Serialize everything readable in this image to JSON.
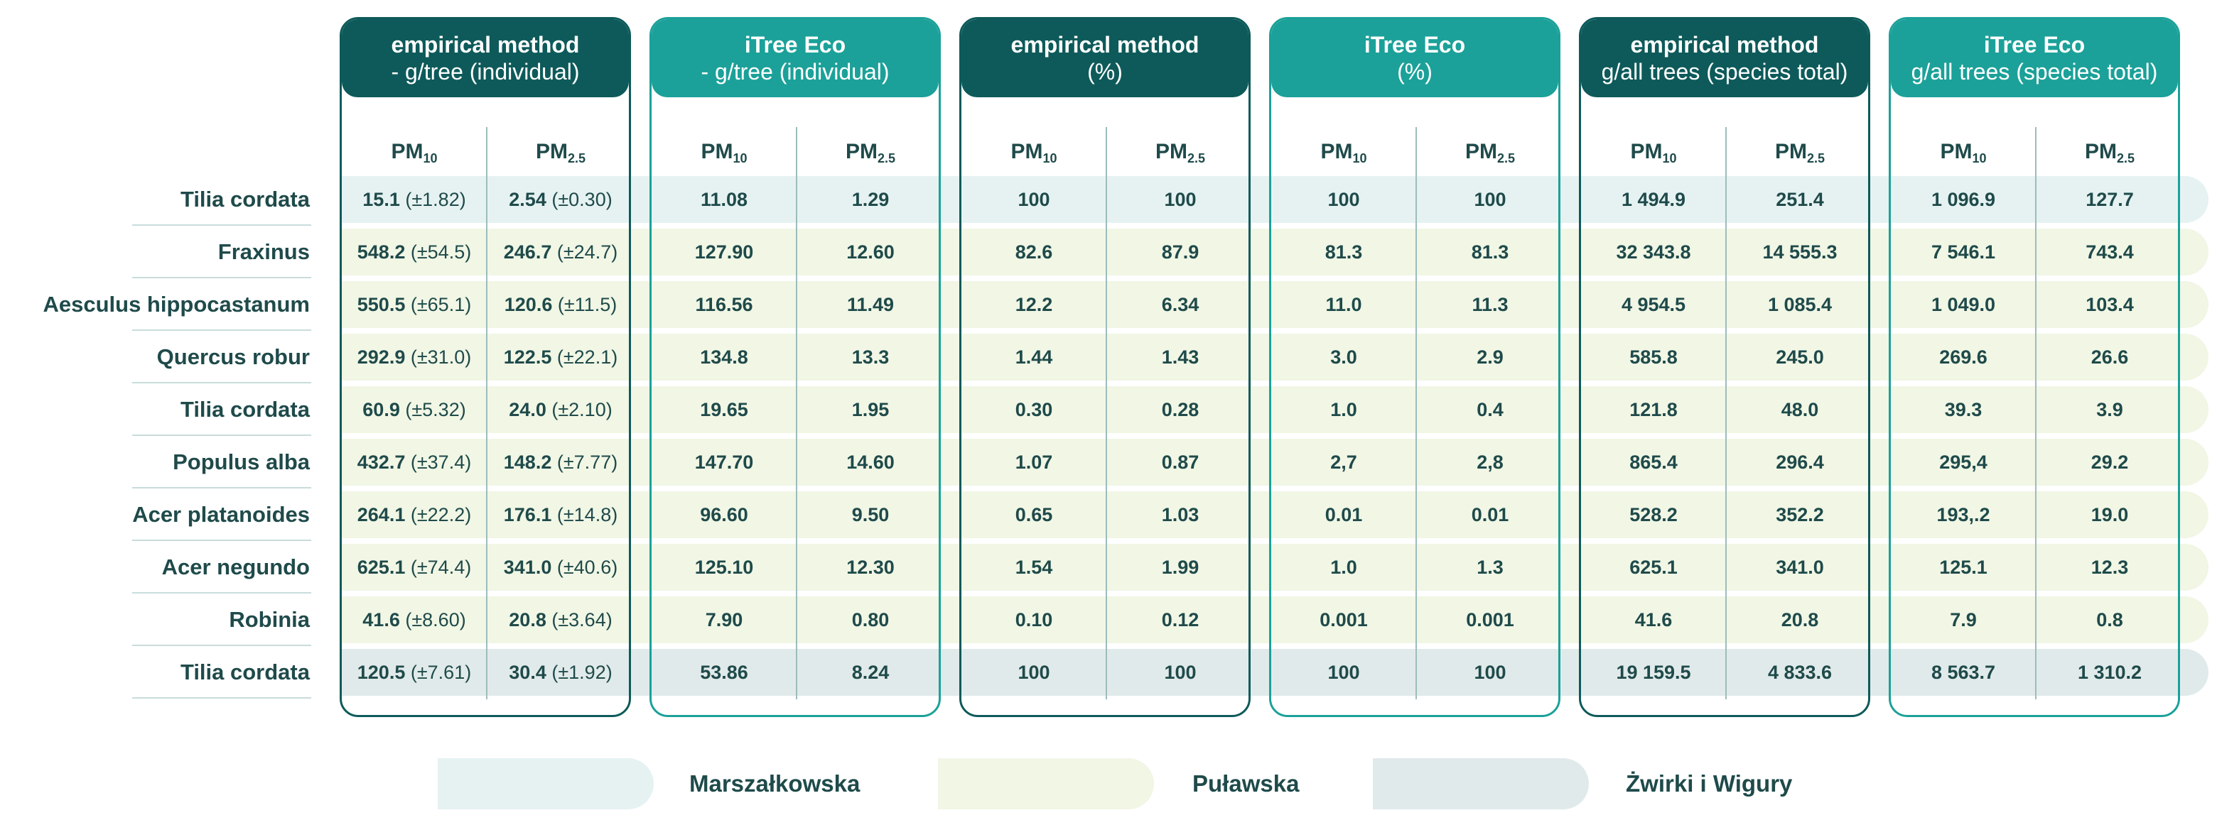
{
  "species": [
    "Tilia cordata",
    "Fraxinus",
    "Aesculus hippocastanum",
    "Quercus robur",
    "Tilia cordata",
    "Populus alba",
    "Acer platanoides",
    "Acer negundo",
    "Robinia",
    "Tilia cordata"
  ],
  "row_groups": [
    "marsz",
    "pul",
    "pul",
    "pul",
    "pul",
    "pul",
    "pul",
    "pul",
    "pul",
    "zw"
  ],
  "pm10_label": "PM",
  "pm10_sub": "10",
  "pm25_label": "PM",
  "pm25_sub": "2.5",
  "panels": [
    {
      "style": "dark",
      "title_line1": "empirical method",
      "title_line2": "- g/tree (individual)",
      "rows": [
        [
          {
            "v": "15.1",
            "sd": "(±1.82)"
          },
          {
            "v": "2.54",
            "sd": "(±0.30)"
          }
        ],
        [
          {
            "v": "548.2",
            "sd": "(±54.5)"
          },
          {
            "v": "246.7",
            "sd": "(±24.7)"
          }
        ],
        [
          {
            "v": "550.5",
            "sd": "(±65.1)"
          },
          {
            "v": "120.6",
            "sd": "(±11.5)"
          }
        ],
        [
          {
            "v": "292.9",
            "sd": "(±31.0)"
          },
          {
            "v": "122.5",
            "sd": "(±22.1)"
          }
        ],
        [
          {
            "v": "60.9",
            "sd": "(±5.32)"
          },
          {
            "v": "24.0",
            "sd": "(±2.10)"
          }
        ],
        [
          {
            "v": "432.7",
            "sd": "(±37.4)"
          },
          {
            "v": "148.2",
            "sd": "(±7.77)"
          }
        ],
        [
          {
            "v": "264.1",
            "sd": "(±22.2)"
          },
          {
            "v": "176.1",
            "sd": "(±14.8)"
          }
        ],
        [
          {
            "v": "625.1",
            "sd": "(±74.4)"
          },
          {
            "v": "341.0",
            "sd": "(±40.6)"
          }
        ],
        [
          {
            "v": "41.6",
            "sd": "(±8.60)"
          },
          {
            "v": "20.8",
            "sd": "(±3.64)"
          }
        ],
        [
          {
            "v": "120.5",
            "sd": "(±7.61)"
          },
          {
            "v": "30.4",
            "sd": "(±1.92)"
          }
        ]
      ]
    },
    {
      "style": "light",
      "title_line1": "iTree Eco",
      "title_line2": "- g/tree (individual)",
      "rows": [
        [
          {
            "v": "11.08"
          },
          {
            "v": "1.29"
          }
        ],
        [
          {
            "v": "127.90"
          },
          {
            "v": "12.60"
          }
        ],
        [
          {
            "v": "116.56"
          },
          {
            "v": "11.49"
          }
        ],
        [
          {
            "v": "134.8"
          },
          {
            "v": "13.3"
          }
        ],
        [
          {
            "v": "19.65"
          },
          {
            "v": "1.95"
          }
        ],
        [
          {
            "v": "147.70"
          },
          {
            "v": "14.60"
          }
        ],
        [
          {
            "v": "96.60"
          },
          {
            "v": "9.50"
          }
        ],
        [
          {
            "v": "125.10"
          },
          {
            "v": "12.30"
          }
        ],
        [
          {
            "v": "7.90"
          },
          {
            "v": "0.80"
          }
        ],
        [
          {
            "v": "53.86"
          },
          {
            "v": "8.24"
          }
        ]
      ]
    },
    {
      "style": "dark",
      "title_line1": "empirical method",
      "title_line2": "(%)",
      "rows": [
        [
          {
            "v": "100"
          },
          {
            "v": "100"
          }
        ],
        [
          {
            "v": "82.6"
          },
          {
            "v": "87.9"
          }
        ],
        [
          {
            "v": "12.2"
          },
          {
            "v": "6.34"
          }
        ],
        [
          {
            "v": "1.44"
          },
          {
            "v": "1.43"
          }
        ],
        [
          {
            "v": "0.30"
          },
          {
            "v": "0.28"
          }
        ],
        [
          {
            "v": "1.07"
          },
          {
            "v": "0.87"
          }
        ],
        [
          {
            "v": "0.65"
          },
          {
            "v": "1.03"
          }
        ],
        [
          {
            "v": "1.54"
          },
          {
            "v": "1.99"
          }
        ],
        [
          {
            "v": "0.10"
          },
          {
            "v": "0.12"
          }
        ],
        [
          {
            "v": "100"
          },
          {
            "v": "100"
          }
        ]
      ]
    },
    {
      "style": "light",
      "title_line1": "iTree Eco",
      "title_line2": "(%)",
      "rows": [
        [
          {
            "v": "100"
          },
          {
            "v": "100"
          }
        ],
        [
          {
            "v": "81.3"
          },
          {
            "v": "81.3"
          }
        ],
        [
          {
            "v": "11.0"
          },
          {
            "v": "11.3"
          }
        ],
        [
          {
            "v": "3.0"
          },
          {
            "v": "2.9"
          }
        ],
        [
          {
            "v": "1.0"
          },
          {
            "v": "0.4"
          }
        ],
        [
          {
            "v": "2,7"
          },
          {
            "v": "2,8"
          }
        ],
        [
          {
            "v": "0.01"
          },
          {
            "v": "0.01"
          }
        ],
        [
          {
            "v": "1.0"
          },
          {
            "v": "1.3"
          }
        ],
        [
          {
            "v": "0.001"
          },
          {
            "v": "0.001"
          }
        ],
        [
          {
            "v": "100"
          },
          {
            "v": "100"
          }
        ]
      ]
    },
    {
      "style": "dark",
      "title_line1": "empirical method",
      "title_line2": "g/all trees (species total)",
      "rows": [
        [
          {
            "v": "1 494.9"
          },
          {
            "v": "251.4"
          }
        ],
        [
          {
            "v": "32 343.8"
          },
          {
            "v": "14 555.3"
          }
        ],
        [
          {
            "v": "4 954.5"
          },
          {
            "v": "1 085.4"
          }
        ],
        [
          {
            "v": "585.8"
          },
          {
            "v": "245.0"
          }
        ],
        [
          {
            "v": "121.8"
          },
          {
            "v": "48.0"
          }
        ],
        [
          {
            "v": "865.4"
          },
          {
            "v": "296.4"
          }
        ],
        [
          {
            "v": "528.2"
          },
          {
            "v": "352.2"
          }
        ],
        [
          {
            "v": "625.1"
          },
          {
            "v": "341.0"
          }
        ],
        [
          {
            "v": "41.6"
          },
          {
            "v": "20.8"
          }
        ],
        [
          {
            "v": "19 159.5"
          },
          {
            "v": "4 833.6"
          }
        ]
      ]
    },
    {
      "style": "light",
      "title_line1": "iTree Eco",
      "title_line2": "g/all trees (species total)",
      "rows": [
        [
          {
            "v": "1 096.9"
          },
          {
            "v": "127.7"
          }
        ],
        [
          {
            "v": "7 546.1"
          },
          {
            "v": "743.4"
          }
        ],
        [
          {
            "v": "1 049.0"
          },
          {
            "v": "103.4"
          }
        ],
        [
          {
            "v": "269.6"
          },
          {
            "v": "26.6"
          }
        ],
        [
          {
            "v": "39.3"
          },
          {
            "v": "3.9"
          }
        ],
        [
          {
            "v": "295,4"
          },
          {
            "v": "29.2"
          }
        ],
        [
          {
            "v": "193,.2"
          },
          {
            "v": "19.0"
          }
        ],
        [
          {
            "v": "125.1"
          },
          {
            "v": "12.3"
          }
        ],
        [
          {
            "v": "7.9"
          },
          {
            "v": "0.8"
          }
        ],
        [
          {
            "v": "8 563.7"
          },
          {
            "v": "1 310.2"
          }
        ]
      ]
    }
  ],
  "legend": [
    {
      "key": "marsz",
      "label": "Marszałkowska"
    },
    {
      "key": "pul",
      "label": "Puławska"
    },
    {
      "key": "zw",
      "label": "Żwirki i Wigury"
    }
  ],
  "colors": {
    "dark_header": "#0e5a5a",
    "light_header": "#1ba199",
    "marszalkowska_band": "#e6f2f2",
    "pulawska_band": "#f1f6e5",
    "zwirki_band": "#e1eaea",
    "text": "#1f4a4a"
  }
}
